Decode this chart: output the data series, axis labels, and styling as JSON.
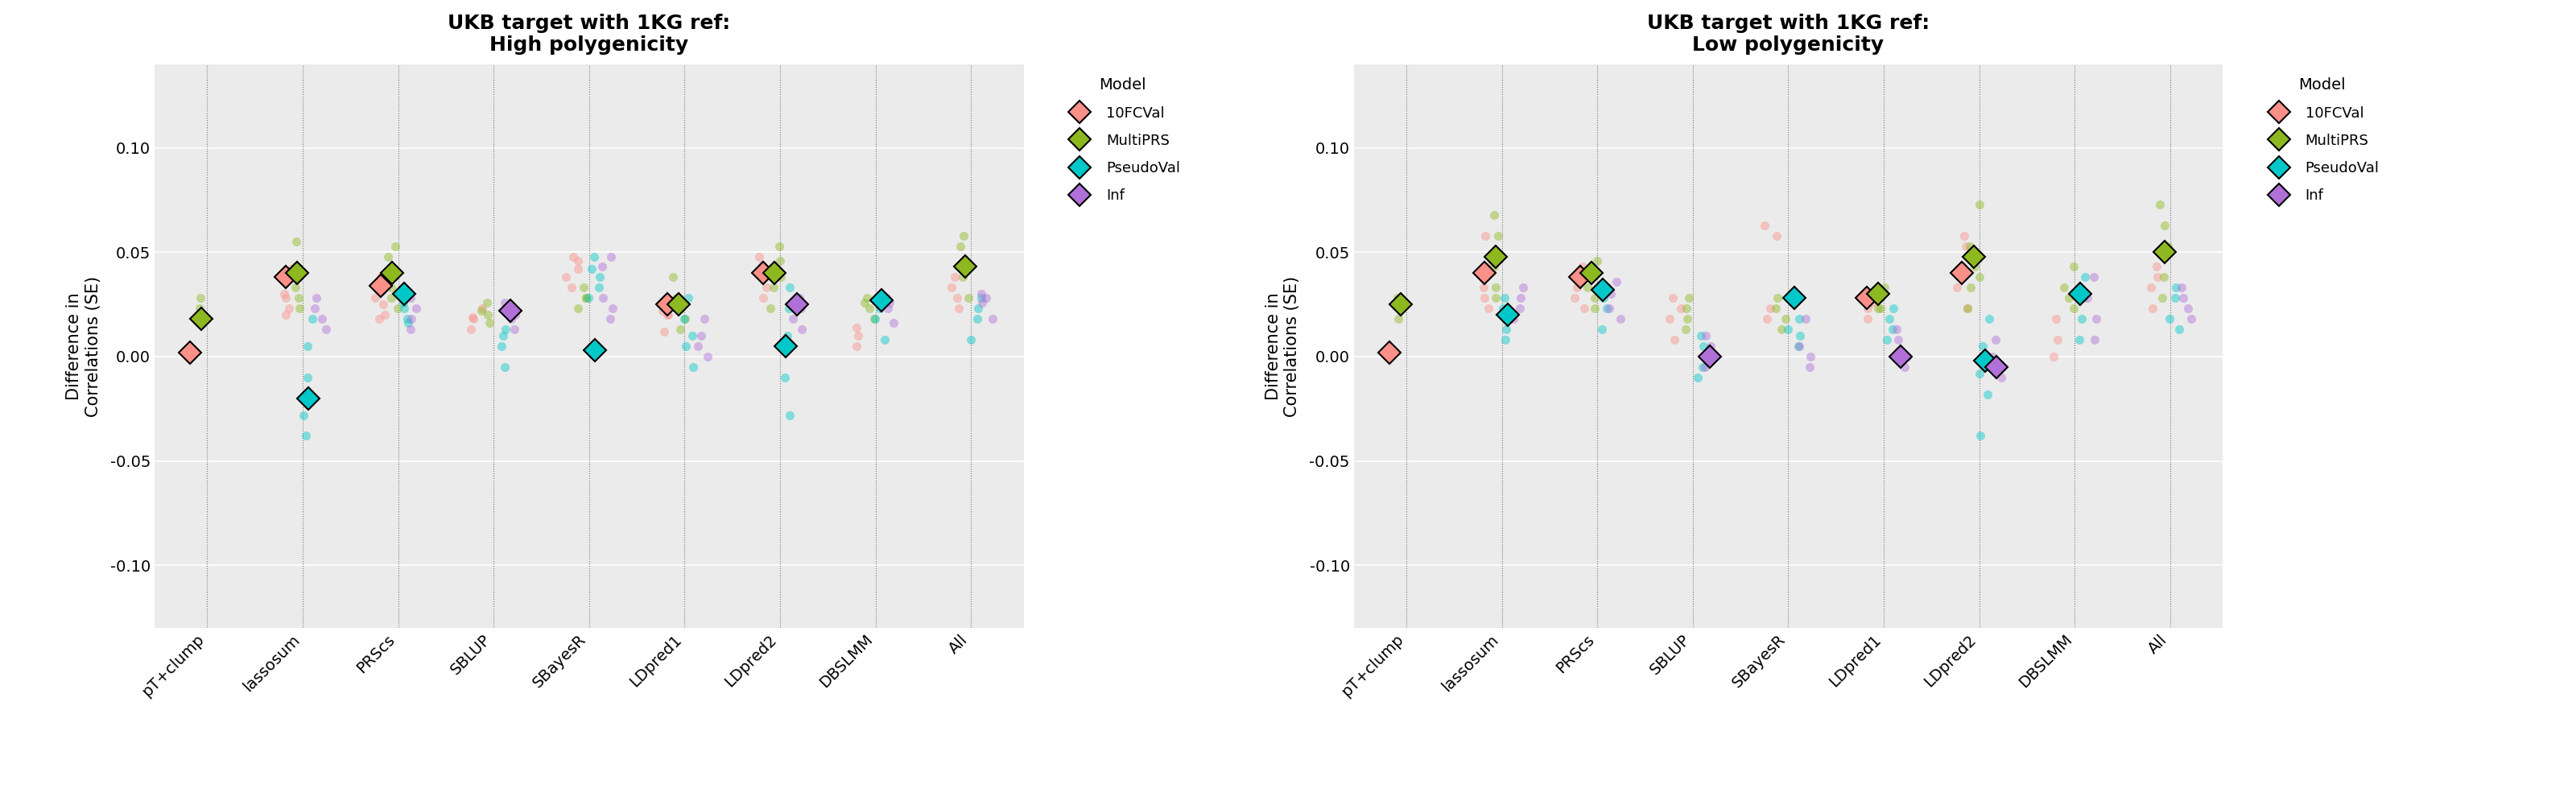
{
  "title_left": "UKB target with 1KG ref:\nHigh polygenicity",
  "title_right": "UKB target with 1KG ref:\nLow polygenicity",
  "ylabel": "Difference in\nCorrelations (SE)",
  "categories": [
    "pT+clump",
    "lassosum",
    "PRScs",
    "SBLUP",
    "SBayesR",
    "LDpred1",
    "LDpred2",
    "DBSLMM",
    "All"
  ],
  "ylim": [
    -0.13,
    0.14
  ],
  "yticks": [
    -0.1,
    -0.05,
    0.0,
    0.05,
    0.1
  ],
  "models": [
    "10FCVal",
    "MultiPRS",
    "PseudoVal",
    "Inf"
  ],
  "model_fill_colors": {
    "10FCVal": "#FA9D99",
    "MultiPRS": "#8FBC20",
    "PseudoVal": "#00C0C8",
    "Inf": "#B070D8"
  },
  "high_poly": {
    "diamonds": {
      "10FCVal": [
        0.002,
        0.038,
        0.034,
        null,
        null,
        0.025,
        0.04,
        null,
        null
      ],
      "MultiPRS": [
        0.018,
        0.04,
        0.04,
        null,
        null,
        0.025,
        0.04,
        null,
        0.043
      ],
      "PseudoVal": [
        null,
        -0.02,
        0.03,
        null,
        0.003,
        null,
        0.005,
        0.027,
        null
      ],
      "Inf": [
        null,
        null,
        null,
        0.022,
        null,
        null,
        0.025,
        null,
        null
      ]
    },
    "dots": {
      "10FCVal": [
        [
          0.002
        ],
        [
          0.023,
          0.03,
          0.038,
          0.042,
          0.028,
          0.02
        ],
        [
          0.028,
          0.032,
          0.038,
          0.025,
          0.02,
          0.018
        ],
        [
          0.013,
          0.018,
          0.023,
          0.019
        ],
        [
          0.033,
          0.042,
          0.038,
          0.048,
          0.046
        ],
        [
          0.012,
          0.02,
          0.026,
          0.022,
          0.02
        ],
        [
          0.033,
          0.038,
          0.044,
          0.048,
          0.028
        ],
        [
          0.005,
          0.01,
          0.014
        ],
        [
          0.023,
          0.028,
          0.033,
          0.038
        ]
      ],
      "MultiPRS": [
        [
          0.018,
          0.028,
          0.023
        ],
        [
          0.028,
          0.043,
          0.055,
          0.023,
          0.033
        ],
        [
          0.023,
          0.048,
          0.053,
          0.033,
          0.028
        ],
        [
          0.016,
          0.02,
          0.026,
          0.022
        ],
        [
          0.023,
          0.028,
          0.033,
          0.028
        ],
        [
          0.018,
          0.023,
          0.038,
          0.028,
          0.013
        ],
        [
          0.023,
          0.038,
          0.046,
          0.053,
          0.033
        ],
        [
          0.018,
          0.026,
          0.028,
          0.023
        ],
        [
          0.028,
          0.043,
          0.053,
          0.058,
          0.038
        ]
      ],
      "PseudoVal": [
        [],
        [
          -0.038,
          -0.028,
          -0.01,
          0.005,
          0.018
        ],
        [
          0.016,
          0.023,
          0.026,
          0.018
        ],
        [
          -0.005,
          0.005,
          0.01,
          0.013
        ],
        [
          0.028,
          0.038,
          0.042,
          0.048,
          0.033
        ],
        [
          -0.005,
          0.005,
          0.01,
          0.018,
          0.028
        ],
        [
          -0.028,
          -0.01,
          0.01,
          0.023,
          0.033
        ],
        [
          0.008,
          0.018,
          0.023,
          0.028
        ],
        [
          0.008,
          0.018,
          0.023,
          0.028
        ]
      ],
      "Inf": [
        [],
        [
          0.013,
          0.023,
          0.028,
          0.018
        ],
        [
          0.013,
          0.018,
          0.023,
          0.028
        ],
        [
          0.013,
          0.02,
          0.026,
          0.018
        ],
        [
          0.018,
          0.023,
          0.028,
          0.043,
          0.048
        ],
        [
          0.0,
          0.005,
          0.01,
          0.018
        ],
        [
          0.013,
          0.018,
          0.028,
          0.023
        ],
        [
          0.016,
          0.023,
          0.028,
          0.026
        ],
        [
          0.018,
          0.026,
          0.03,
          0.028
        ]
      ]
    }
  },
  "low_poly": {
    "diamonds": {
      "10FCVal": [
        0.002,
        0.04,
        0.038,
        null,
        null,
        0.028,
        0.04,
        null,
        null
      ],
      "MultiPRS": [
        0.025,
        0.048,
        0.04,
        null,
        null,
        0.03,
        0.048,
        null,
        0.05
      ],
      "PseudoVal": [
        null,
        0.02,
        0.032,
        null,
        0.028,
        null,
        -0.002,
        0.03,
        null
      ],
      "Inf": [
        null,
        null,
        null,
        0.0,
        null,
        0.0,
        -0.005,
        null,
        null
      ]
    },
    "dots": {
      "10FCVal": [
        [
          0.002
        ],
        [
          0.023,
          0.033,
          0.043,
          0.048,
          0.058,
          0.028
        ],
        [
          0.028,
          0.033,
          0.038,
          0.043,
          0.023
        ],
        [
          0.008,
          0.018,
          0.028,
          0.023
        ],
        [
          0.018,
          0.023,
          0.058,
          0.063
        ],
        [
          0.023,
          0.026,
          0.028,
          0.018
        ],
        [
          0.023,
          0.033,
          0.043,
          0.053,
          0.058,
          0.038
        ],
        [
          0.0,
          0.008,
          0.018
        ],
        [
          0.023,
          0.033,
          0.038,
          0.043
        ]
      ],
      "MultiPRS": [
        [
          0.018,
          0.023,
          0.028
        ],
        [
          0.028,
          0.043,
          0.058,
          0.068,
          0.033
        ],
        [
          0.028,
          0.038,
          0.046,
          0.033,
          0.023
        ],
        [
          0.013,
          0.023,
          0.028,
          0.018
        ],
        [
          0.013,
          0.023,
          0.028,
          0.018
        ],
        [
          0.023,
          0.028,
          0.033,
          0.023
        ],
        [
          0.023,
          0.033,
          0.043,
          0.053,
          0.073,
          0.038
        ],
        [
          0.023,
          0.028,
          0.043,
          0.033
        ],
        [
          0.028,
          0.038,
          0.053,
          0.063,
          0.073
        ]
      ],
      "PseudoVal": [
        [],
        [
          0.008,
          0.018,
          0.028,
          0.023,
          0.013
        ],
        [
          0.013,
          0.023,
          0.033,
          0.028
        ],
        [
          -0.01,
          -0.005,
          0.005,
          0.01
        ],
        [
          0.005,
          0.01,
          0.013,
          0.018
        ],
        [
          0.008,
          0.018,
          0.023,
          0.013
        ],
        [
          -0.038,
          -0.018,
          -0.008,
          0.005,
          0.018
        ],
        [
          0.008,
          0.018,
          0.028,
          0.038
        ],
        [
          0.013,
          0.018,
          0.028,
          0.033
        ]
      ],
      "Inf": [
        [],
        [
          0.018,
          0.023,
          0.028,
          0.033
        ],
        [
          0.018,
          0.023,
          0.03,
          0.036
        ],
        [
          -0.005,
          0.0,
          0.005,
          0.01
        ],
        [
          -0.005,
          0.0,
          0.005,
          0.018
        ],
        [
          -0.005,
          0.0,
          0.008,
          0.013
        ],
        [
          -0.01,
          -0.005,
          0.0,
          0.008
        ],
        [
          0.008,
          0.018,
          0.028,
          0.038
        ],
        [
          0.018,
          0.023,
          0.028,
          0.033
        ]
      ]
    }
  },
  "background_color": "#FFFFFF",
  "panel_bg": "#EBEBEB",
  "grid_color": "#FFFFFF",
  "vline_color": "#555555"
}
